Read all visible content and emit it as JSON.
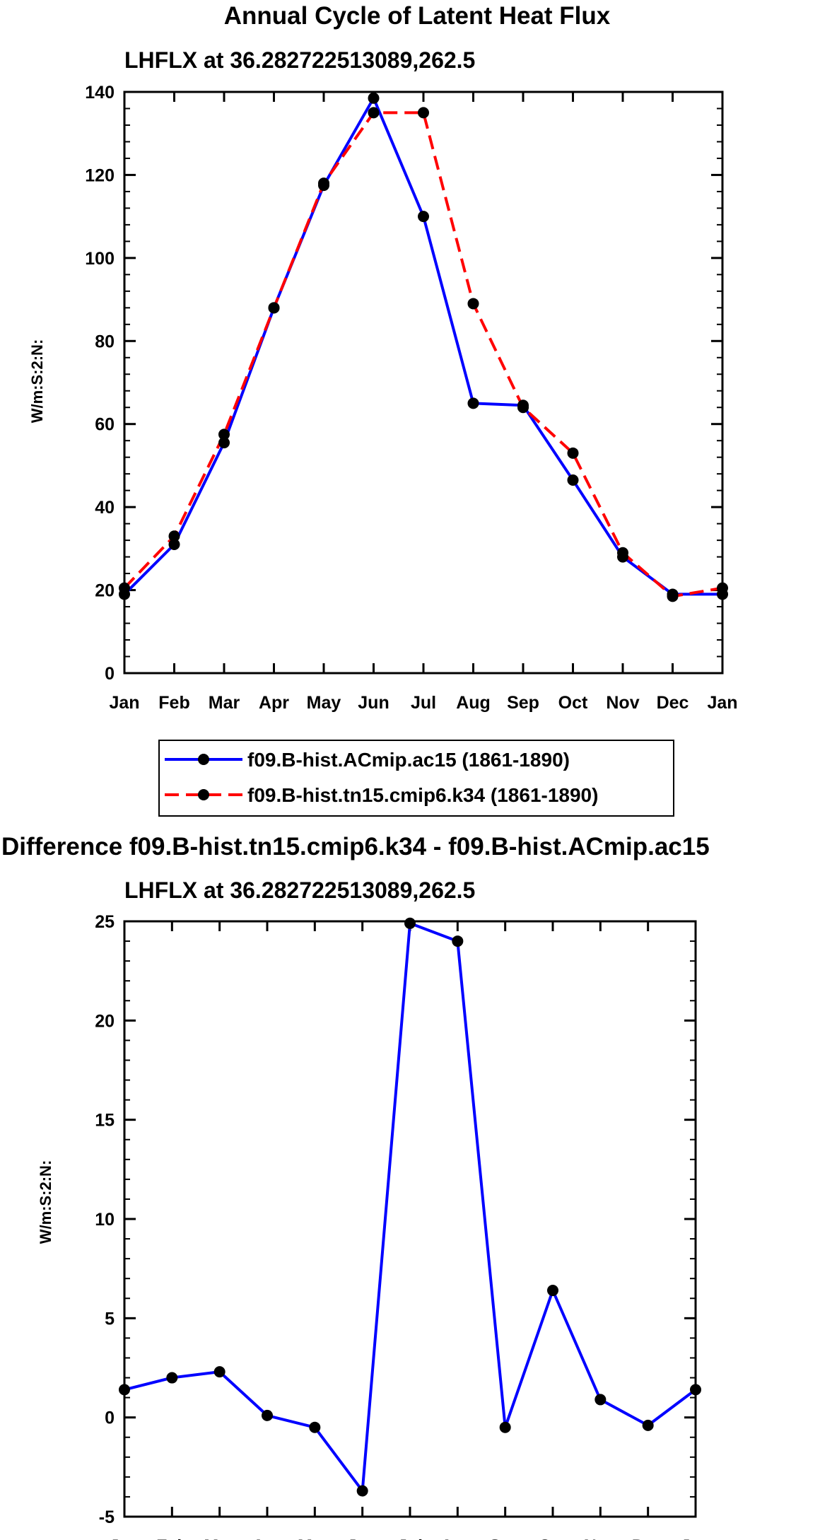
{
  "chart_data": [
    {
      "type": "line",
      "title": "Annual Cycle of Latent Heat Flux",
      "subtitle": "LHFLX at 36.282722513089,262.5",
      "xlabel": "",
      "ylabel": "W/m:S:2:N:",
      "categories": [
        "Jan",
        "Feb",
        "Mar",
        "Apr",
        "May",
        "Jun",
        "Jul",
        "Aug",
        "Sep",
        "Oct",
        "Nov",
        "Dec",
        "Jan"
      ],
      "ylim": [
        0,
        140
      ],
      "yticks": [
        0,
        20,
        40,
        60,
        80,
        100,
        120,
        140
      ],
      "series": [
        {
          "name": "f09.B-hist.ACmip.ac15 (1861-1890)",
          "color": "#0000ff",
          "style": "solid",
          "values": [
            19,
            31,
            55.5,
            88,
            117.5,
            138.5,
            110,
            65,
            64.5,
            46.5,
            28,
            19,
            19
          ]
        },
        {
          "name": "f09.B-hist.tn15.cmip6.k34 (1861-1890)",
          "color": "#ff0000",
          "style": "dashed",
          "values": [
            20.5,
            33,
            57.5,
            88,
            118,
            135,
            135,
            89,
            64,
            53,
            29,
            18.5,
            20.5
          ]
        }
      ],
      "legend": "below"
    },
    {
      "type": "line",
      "title": "Difference f09.B-hist.tn15.cmip6.k34 - f09.B-hist.ACmip.ac15",
      "subtitle": "LHFLX at 36.282722513089,262.5",
      "xlabel": "",
      "ylabel": "W/m:S:2:N:",
      "categories": [
        "Jan",
        "Feb",
        "Mar",
        "Apr",
        "May",
        "Jun",
        "Jul",
        "Aug",
        "Sep",
        "Oct",
        "Nov",
        "Dec",
        "Jan"
      ],
      "ylim": [
        -5,
        25
      ],
      "yticks": [
        -5,
        0,
        5,
        10,
        15,
        20,
        25
      ],
      "series": [
        {
          "name": "Difference",
          "color": "#0000ff",
          "style": "solid",
          "values": [
            1.4,
            2.0,
            2.3,
            0.1,
            -0.5,
            -3.7,
            24.9,
            24.0,
            -0.5,
            6.4,
            0.9,
            -0.4,
            1.4
          ]
        }
      ]
    }
  ]
}
